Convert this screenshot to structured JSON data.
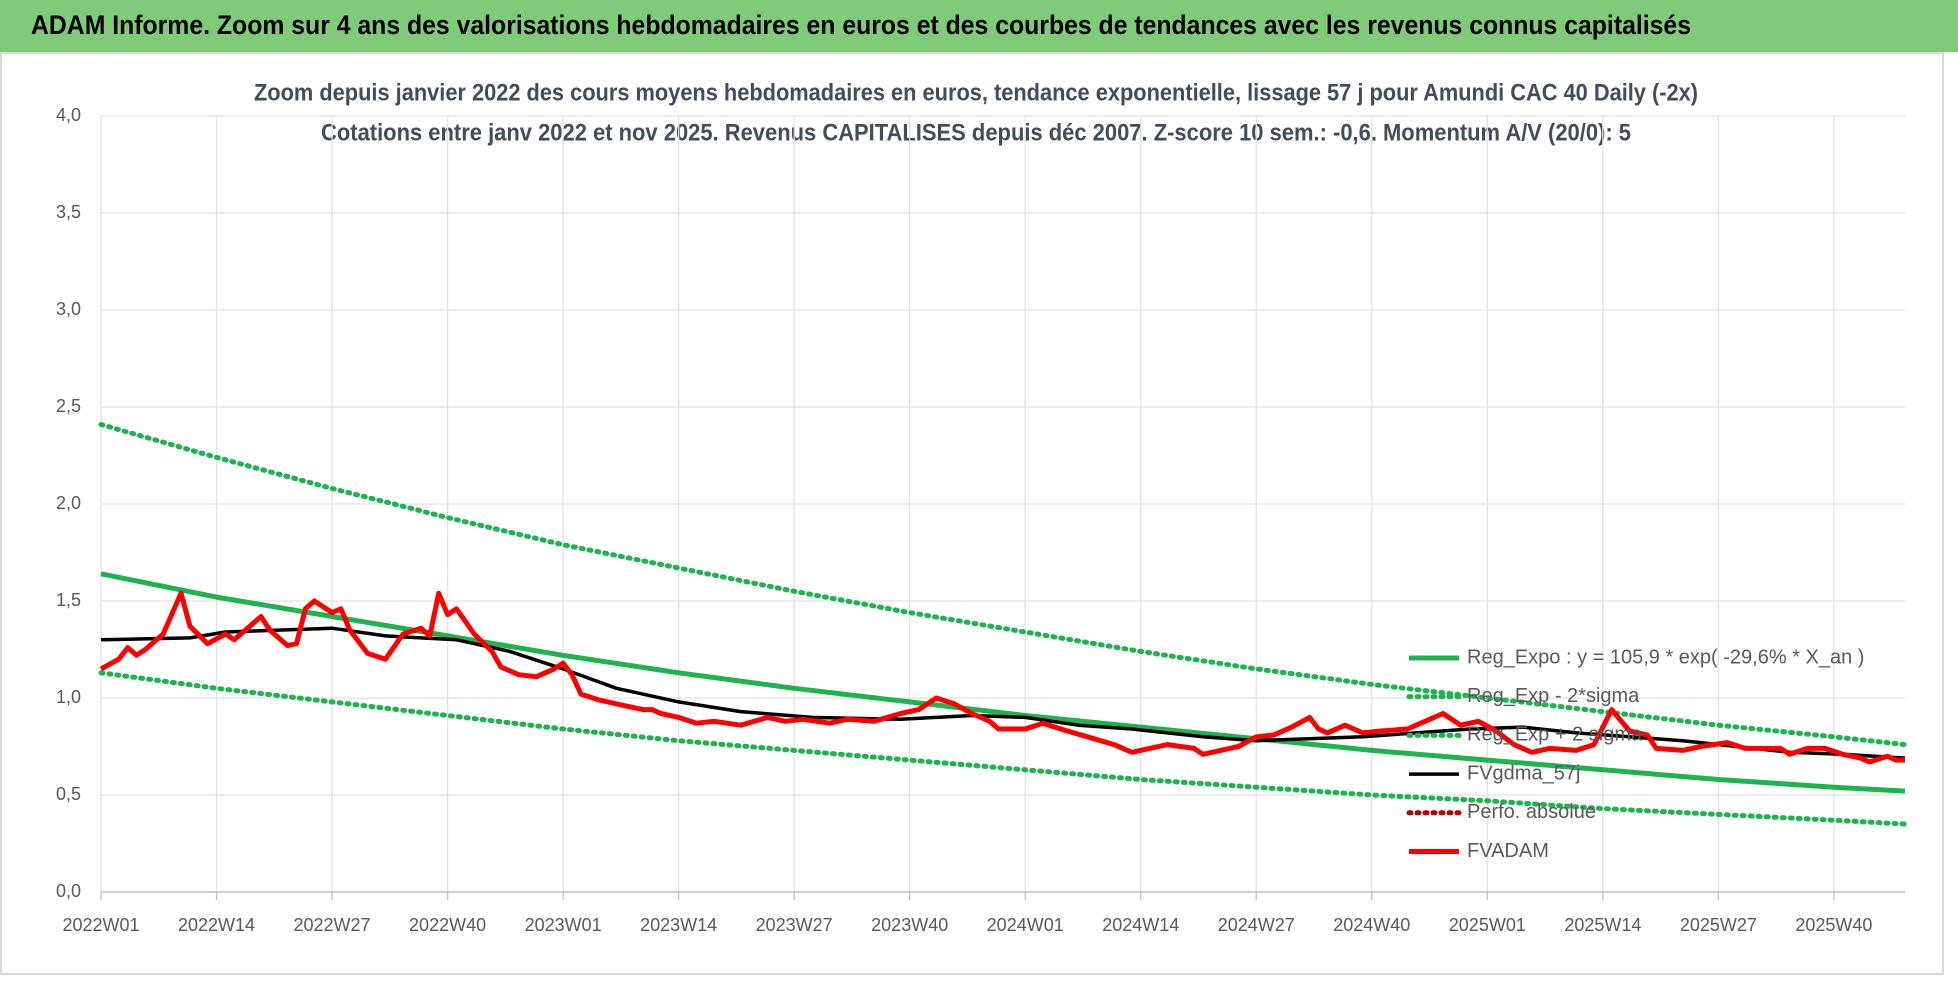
{
  "header": {
    "title": "ADAM Informe. Zoom sur 4 ans des valorisations hebdomadaires en euros et des courbes de tendances avec les revenus connus capitalisés"
  },
  "chart_data": {
    "type": "line",
    "title": "Zoom depuis janvier 2022 des cours moyens hebdomadaires en euros, tendance exponentielle, lissage 57 j pour Amundi CAC 40 Daily (-2x)",
    "subtitle": "Cotations entre janv 2022 et nov 2025. Revenus CAPITALISES depuis déc 2007. Z-score 10 sem.: -0,6. Momentum A/V (20/0): 5",
    "xlim": [
      0,
      203
    ],
    "xticks": [
      {
        "value": 0,
        "label": "2022W01"
      },
      {
        "value": 13,
        "label": "2022W14"
      },
      {
        "value": 26,
        "label": "2022W27"
      },
      {
        "value": 39,
        "label": "2022W40"
      },
      {
        "value": 52,
        "label": "2023W01"
      },
      {
        "value": 65,
        "label": "2023W14"
      },
      {
        "value": 78,
        "label": "2023W27"
      },
      {
        "value": 91,
        "label": "2023W40"
      },
      {
        "value": 104,
        "label": "2024W01"
      },
      {
        "value": 117,
        "label": "2024W14"
      },
      {
        "value": 130,
        "label": "2024W27"
      },
      {
        "value": 143,
        "label": "2024W40"
      },
      {
        "value": 156,
        "label": "2025W01"
      },
      {
        "value": 169,
        "label": "2025W14"
      },
      {
        "value": 182,
        "label": "2025W27"
      },
      {
        "value": 195,
        "label": "2025W40"
      }
    ],
    "ylim": [
      0,
      4
    ],
    "yticks": [
      {
        "value": 0,
        "label": "0,0"
      },
      {
        "value": 0.5,
        "label": "0,5"
      },
      {
        "value": 1,
        "label": "1,0"
      },
      {
        "value": 1.5,
        "label": "1,5"
      },
      {
        "value": 2,
        "label": "2,0"
      },
      {
        "value": 2.5,
        "label": "2,5"
      },
      {
        "value": 3,
        "label": "3,0"
      },
      {
        "value": 3.5,
        "label": "3,5"
      },
      {
        "value": 4,
        "label": "4,0"
      }
    ],
    "grid": true,
    "legend": "right",
    "series": [
      {
        "name": "Reg_Expo : y = 105,9 * exp( -29,6% *  X_an )",
        "color": "#1db34f",
        "style": "solid",
        "x": [
          0,
          13,
          26,
          39,
          52,
          65,
          78,
          91,
          104,
          117,
          130,
          143,
          156,
          169,
          182,
          195,
          203
        ],
        "values": [
          1.64,
          1.52,
          1.42,
          1.32,
          1.22,
          1.13,
          1.05,
          0.98,
          0.91,
          0.85,
          0.79,
          0.73,
          0.68,
          0.63,
          0.58,
          0.54,
          0.52
        ]
      },
      {
        "name": "Reg_Exp - 2*sigma",
        "color": "#1db34f",
        "style": "dotted",
        "x": [
          0,
          13,
          26,
          39,
          52,
          65,
          78,
          91,
          104,
          117,
          130,
          143,
          156,
          169,
          182,
          195,
          203
        ],
        "values": [
          1.13,
          1.05,
          0.98,
          0.91,
          0.84,
          0.78,
          0.73,
          0.68,
          0.63,
          0.58,
          0.54,
          0.5,
          0.47,
          0.43,
          0.4,
          0.37,
          0.35
        ]
      },
      {
        "name": "Reg_Exp + 2 sigma",
        "color": "#1db34f",
        "style": "dotted",
        "x": [
          0,
          13,
          26,
          39,
          52,
          65,
          78,
          91,
          104,
          117,
          130,
          143,
          156,
          169,
          182,
          195,
          203
        ],
        "values": [
          2.41,
          2.24,
          2.08,
          1.93,
          1.79,
          1.67,
          1.55,
          1.44,
          1.34,
          1.24,
          1.15,
          1.07,
          1.0,
          0.93,
          0.86,
          0.8,
          0.76
        ]
      },
      {
        "name": "FVgdma_57j",
        "color": "#000000",
        "style": "solid",
        "x": [
          0,
          10,
          14,
          20,
          26,
          32,
          36,
          40,
          46,
          52,
          58,
          65,
          72,
          80,
          90,
          98,
          104,
          110,
          116,
          124,
          130,
          136,
          142,
          148,
          154,
          160,
          166,
          172,
          178,
          184,
          190,
          196,
          203
        ],
        "values": [
          1.3,
          1.31,
          1.34,
          1.35,
          1.36,
          1.32,
          1.31,
          1.3,
          1.24,
          1.15,
          1.05,
          0.98,
          0.93,
          0.9,
          0.89,
          0.91,
          0.9,
          0.86,
          0.84,
          0.8,
          0.78,
          0.79,
          0.8,
          0.82,
          0.84,
          0.85,
          0.82,
          0.8,
          0.78,
          0.75,
          0.72,
          0.71,
          0.69
        ]
      },
      {
        "name": "Perfo. absolue",
        "color": "#c00000",
        "style": "dotted",
        "x": [],
        "values": []
      },
      {
        "name": "FVADAM",
        "color": "#ff0000",
        "style": "solid",
        "x": [
          0,
          2,
          3,
          4,
          5,
          7,
          9,
          10,
          12,
          14,
          15,
          18,
          19,
          21,
          22,
          23,
          24,
          26,
          27,
          28,
          30,
          32,
          34,
          36,
          37,
          38,
          39,
          40,
          42,
          44,
          45,
          47,
          49,
          51,
          52,
          53,
          54,
          56,
          59,
          61,
          62,
          63,
          65,
          67,
          69,
          72,
          75,
          77,
          79,
          82,
          84,
          87,
          90,
          92,
          94,
          96,
          98,
          100,
          101,
          104,
          106,
          108,
          111,
          114,
          116,
          118,
          120,
          123,
          124,
          126,
          128,
          130,
          132,
          134,
          136,
          137,
          138,
          140,
          142,
          144,
          147,
          149,
          151,
          153,
          155,
          157,
          159,
          161,
          163,
          166,
          168,
          170,
          172,
          174,
          175,
          178,
          180,
          183,
          185,
          187,
          189,
          190,
          192,
          194,
          196,
          198,
          199,
          201,
          202,
          203
        ],
        "values": [
          1.15,
          1.2,
          1.26,
          1.22,
          1.25,
          1.33,
          1.54,
          1.37,
          1.28,
          1.33,
          1.3,
          1.42,
          1.35,
          1.27,
          1.28,
          1.46,
          1.5,
          1.44,
          1.46,
          1.35,
          1.23,
          1.2,
          1.33,
          1.36,
          1.32,
          1.54,
          1.43,
          1.46,
          1.33,
          1.24,
          1.16,
          1.12,
          1.11,
          1.15,
          1.18,
          1.12,
          1.02,
          0.99,
          0.96,
          0.94,
          0.94,
          0.92,
          0.9,
          0.87,
          0.88,
          0.86,
          0.9,
          0.88,
          0.89,
          0.87,
          0.89,
          0.88,
          0.92,
          0.94,
          1.0,
          0.97,
          0.92,
          0.88,
          0.84,
          0.84,
          0.87,
          0.84,
          0.8,
          0.76,
          0.72,
          0.74,
          0.76,
          0.74,
          0.71,
          0.73,
          0.75,
          0.8,
          0.81,
          0.85,
          0.9,
          0.84,
          0.82,
          0.86,
          0.82,
          0.83,
          0.84,
          0.88,
          0.92,
          0.86,
          0.88,
          0.83,
          0.76,
          0.72,
          0.74,
          0.73,
          0.76,
          0.94,
          0.83,
          0.81,
          0.74,
          0.73,
          0.75,
          0.77,
          0.74,
          0.74,
          0.74,
          0.71,
          0.74,
          0.74,
          0.71,
          0.69,
          0.67,
          0.7,
          0.68,
          0.68
        ]
      }
    ]
  }
}
